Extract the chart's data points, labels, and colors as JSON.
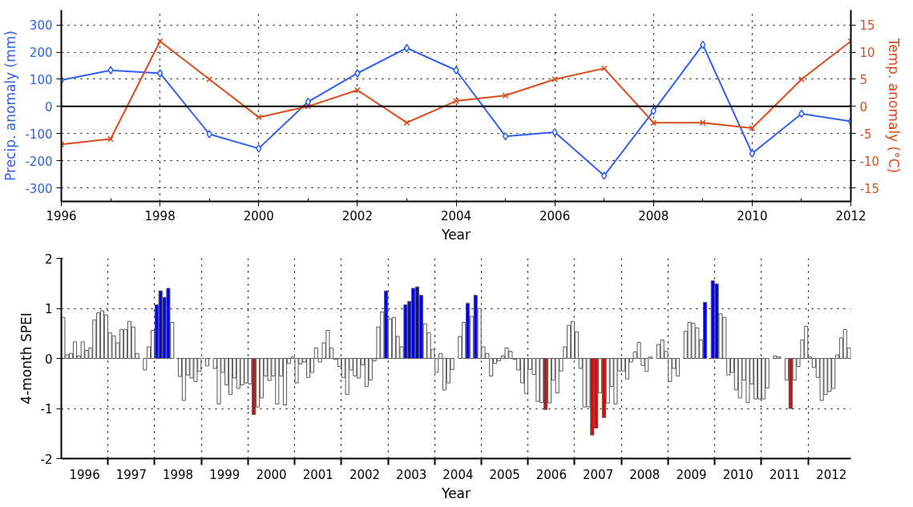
{
  "chart_data": [
    {
      "type": "line",
      "xlabel": "Year",
      "ylabel": "Precip. anomaly (mm)",
      "y2label": "Temp. anomaly (°C)",
      "x": [
        1996,
        1997,
        1998,
        1999,
        2000,
        2001,
        2002,
        2003,
        2004,
        2005,
        2006,
        2007,
        2008,
        2009,
        2010,
        2011,
        2012
      ],
      "series": [
        {
          "color": "#3060f0",
          "marker": "diamond",
          "values": [
            97,
            133,
            122,
            -102,
            -155,
            17,
            122,
            215,
            133,
            -110,
            -95,
            -255,
            -17,
            227,
            -173,
            -27,
            -55
          ]
        },
        {
          "color": "#dd4a1c",
          "marker": "cross",
          "axis": "y2",
          "values": [
            -7,
            -6,
            12,
            5,
            -2,
            0,
            3,
            -3,
            1,
            2,
            5,
            7,
            -3,
            -3,
            -4,
            5,
            12
          ]
        }
      ],
      "xlim": [
        1996,
        2012
      ],
      "ylim": [
        -350,
        355
      ],
      "y2lim": [
        -17.5,
        17.75
      ],
      "xticks": [
        1996,
        {
          "value": 1997,
          "label": null
        },
        1998,
        {
          "value": 1999,
          "label": null
        },
        2000,
        {
          "value": 2001,
          "label": null
        },
        2002,
        {
          "value": 2003,
          "label": null
        },
        2004,
        {
          "value": 2005,
          "label": null
        },
        2006,
        {
          "value": 2007,
          "label": null
        },
        2008,
        {
          "value": 2009,
          "label": null
        },
        2010,
        {
          "value": 2011,
          "label": null
        },
        2012
      ],
      "yticks": [
        -300,
        -200,
        -100,
        0,
        100,
        200,
        300
      ],
      "y2ticks": [
        -15,
        -10,
        -5,
        0,
        5,
        10,
        15
      ],
      "ref_lines": [
        {
          "axis": "y",
          "value": 0,
          "color": "#000000"
        }
      ],
      "grid": true
    },
    {
      "type": "bar",
      "xlabel": "Year",
      "ylabel": "4-month SPEI",
      "x": [
        "1996-01",
        "1996-02",
        "1996-03",
        "1996-04",
        "1996-05",
        "1996-06",
        "1996-07",
        "1996-08",
        "1996-09",
        "1996-10",
        "1996-11",
        "1996-12",
        "1997-01",
        "1997-02",
        "1997-03",
        "1997-04",
        "1997-05",
        "1997-06",
        "1997-07",
        "1997-08",
        "1997-09",
        "1997-10",
        "1997-11",
        "1997-12",
        "1998-01",
        "1998-02",
        "1998-03",
        "1998-04",
        "1998-05",
        "1998-06",
        "1998-07",
        "1998-08",
        "1998-09",
        "1998-10",
        "1998-11",
        "1998-12",
        "1999-01",
        "1999-02",
        "1999-03",
        "1999-04",
        "1999-05",
        "1999-06",
        "1999-07",
        "1999-08",
        "1999-09",
        "1999-10",
        "1999-11",
        "1999-12",
        "2000-01",
        "2000-02",
        "2000-03",
        "2000-04",
        "2000-05",
        "2000-06",
        "2000-07",
        "2000-08",
        "2000-09",
        "2000-10",
        "2000-11",
        "2000-12",
        "2001-01",
        "2001-02",
        "2001-03",
        "2001-04",
        "2001-05",
        "2001-06",
        "2001-07",
        "2001-08",
        "2001-09",
        "2001-10",
        "2001-11",
        "2001-12",
        "2002-01",
        "2002-02",
        "2002-03",
        "2002-04",
        "2002-05",
        "2002-06",
        "2002-07",
        "2002-08",
        "2002-09",
        "2002-10",
        "2002-11",
        "2002-12",
        "2003-01",
        "2003-02",
        "2003-03",
        "2003-04",
        "2003-05",
        "2003-06",
        "2003-07",
        "2003-08",
        "2003-09",
        "2003-10",
        "2003-11",
        "2003-12",
        "2004-01",
        "2004-02",
        "2004-03",
        "2004-04",
        "2004-05",
        "2004-06",
        "2004-07",
        "2004-08",
        "2004-09",
        "2004-10",
        "2004-11",
        "2004-12",
        "2005-01",
        "2005-02",
        "2005-03",
        "2005-04",
        "2005-05",
        "2005-06",
        "2005-07",
        "2005-08",
        "2005-09",
        "2005-10",
        "2005-11",
        "2005-12",
        "2006-01",
        "2006-02",
        "2006-03",
        "2006-04",
        "2006-05",
        "2006-06",
        "2006-07",
        "2006-08",
        "2006-09",
        "2006-10",
        "2006-11",
        "2006-12",
        "2007-01",
        "2007-02",
        "2007-03",
        "2007-04",
        "2007-05",
        "2007-06",
        "2007-07",
        "2007-08",
        "2007-09",
        "2007-10",
        "2007-11",
        "2007-12",
        "2008-01",
        "2008-02",
        "2008-03",
        "2008-04",
        "2008-05",
        "2008-06",
        "2008-07",
        "2008-08",
        "2008-09",
        "2008-10",
        "2008-11",
        "2008-12",
        "2009-01",
        "2009-02",
        "2009-03",
        "2009-04",
        "2009-05",
        "2009-06",
        "2009-07",
        "2009-08",
        "2009-09",
        "2009-10",
        "2009-11",
        "2009-12",
        "2010-01",
        "2010-02",
        "2010-03",
        "2010-04",
        "2010-05",
        "2010-06",
        "2010-07",
        "2010-08",
        "2010-09",
        "2010-10",
        "2010-11",
        "2010-12",
        "2011-01",
        "2011-02",
        "2011-03",
        "2011-04",
        "2011-05",
        "2011-06",
        "2011-07",
        "2011-08",
        "2011-09",
        "2011-10",
        "2011-11",
        "2011-12",
        "2012-01",
        "2012-02",
        "2012-03",
        "2012-04",
        "2012-05",
        "2012-06",
        "2012-07",
        "2012-08",
        "2012-09",
        "2012-10",
        "2012-11"
      ],
      "values": [
        0.82,
        0.07,
        0.1,
        0.33,
        0.05,
        0.33,
        0.16,
        0.21,
        0.77,
        0.91,
        0.95,
        0.87,
        0.51,
        0.45,
        0.31,
        0.58,
        0.58,
        0.74,
        0.63,
        0.1,
        null,
        -0.23,
        0.23,
        0.56,
        1.07,
        1.35,
        1.22,
        1.4,
        0.72,
        null,
        -0.36,
        -0.84,
        -0.33,
        -0.39,
        -0.46,
        -0.26,
        null,
        -0.15,
        null,
        -0.2,
        -0.91,
        -0.28,
        -0.53,
        -0.72,
        -0.39,
        -0.6,
        -0.53,
        -0.49,
        -0.51,
        -1.12,
        -0.97,
        -0.79,
        -0.35,
        -0.44,
        -0.35,
        -0.91,
        -0.35,
        -0.93,
        -0.1,
        0.03,
        -0.49,
        -0.11,
        -0.07,
        -0.38,
        -0.28,
        0.21,
        -0.07,
        0.31,
        0.56,
        0.21,
        -0.02,
        -0.16,
        -0.38,
        -0.72,
        -0.23,
        -0.35,
        -0.39,
        -0.13,
        -0.56,
        -0.43,
        -0.05,
        0.63,
        0.93,
        1.35,
        0.79,
        0.82,
        0.44,
        0.23,
        1.07,
        1.14,
        1.4,
        1.43,
        1.26,
        0.69,
        0.51,
        0.18,
        -0.28,
        0.1,
        -0.63,
        -0.49,
        -0.22,
        null,
        0.44,
        0.72,
        1.1,
        0.84,
        1.26,
        1.0,
        0.23,
        0.1,
        -0.35,
        -0.1,
        -0.05,
        0.05,
        0.21,
        0.14,
        -0.02,
        -0.23,
        -0.49,
        -0.7,
        -0.22,
        -0.32,
        -0.86,
        -0.88,
        -1.02,
        -0.89,
        -0.43,
        -0.69,
        -0.25,
        0.23,
        0.66,
        0.74,
        0.53,
        -0.2,
        -0.97,
        -0.97,
        -1.53,
        -1.39,
        -0.69,
        -1.18,
        -0.89,
        -0.56,
        -0.91,
        -0.25,
        -0.25,
        -0.41,
        -0.07,
        0.13,
        0.32,
        -0.14,
        -0.26,
        0.03,
        null,
        0.28,
        0.37,
        0.14,
        -0.46,
        -0.2,
        -0.35,
        null,
        0.54,
        0.72,
        0.7,
        0.61,
        0.37,
        1.12,
        null,
        1.55,
        1.49,
        0.89,
        0.82,
        -0.33,
        -0.28,
        -0.63,
        -0.79,
        -0.43,
        -0.88,
        -0.51,
        -0.81,
        -0.81,
        -0.81,
        -0.59,
        null,
        0.05,
        0.03,
        null,
        -0.43,
        -1.0,
        -0.43,
        -0.16,
        0.37,
        0.64,
        0.03,
        -0.18,
        -0.38,
        -0.84,
        -0.72,
        -0.66,
        -0.6,
        0.07,
        0.41,
        0.58,
        0.21
      ],
      "colors": [
        "#ffffff",
        "#ffffff",
        "#ffffff",
        "#ffffff",
        "#ffffff",
        "#ffffff",
        "#ffffff",
        "#ffffff",
        "#ffffff",
        "#ffffff",
        "#ffffff",
        "#ffffff",
        "#ffffff",
        "#ffffff",
        "#ffffff",
        "#ffffff",
        "#ffffff",
        "#ffffff",
        "#ffffff",
        "#ffffff",
        "#ffffff",
        "#ffffff",
        "#ffffff",
        "#ffffff",
        "#0000ee",
        "#0000ee",
        "#0000ee",
        "#0000ee",
        "#ffffff",
        "#ffffff",
        "#ffffff",
        "#ffffff",
        "#ffffff",
        "#ffffff",
        "#ffffff",
        "#ffffff",
        "#ffffff",
        "#ffffff",
        "#ffffff",
        "#ffffff",
        "#ffffff",
        "#ffffff",
        "#ffffff",
        "#ffffff",
        "#ffffff",
        "#ffffff",
        "#ffffff",
        "#ffffff",
        "#ffffff",
        "#ee0000",
        "#ffffff",
        "#ffffff",
        "#ffffff",
        "#ffffff",
        "#ffffff",
        "#ffffff",
        "#ffffff",
        "#ffffff",
        "#ffffff",
        "#ffffff",
        "#ffffff",
        "#ffffff",
        "#ffffff",
        "#ffffff",
        "#ffffff",
        "#ffffff",
        "#ffffff",
        "#ffffff",
        "#ffffff",
        "#ffffff",
        "#ffffff",
        "#ffffff",
        "#ffffff",
        "#ffffff",
        "#ffffff",
        "#ffffff",
        "#ffffff",
        "#ffffff",
        "#ffffff",
        "#ffffff",
        "#ffffff",
        "#ffffff",
        "#ffffff",
        "#0000ee",
        "#ffffff",
        "#ffffff",
        "#ffffff",
        "#ffffff",
        "#0000ee",
        "#0000ee",
        "#0000ee",
        "#0000ee",
        "#0000ee",
        "#ffffff",
        "#ffffff",
        "#ffffff",
        "#ffffff",
        "#ffffff",
        "#ffffff",
        "#ffffff",
        "#ffffff",
        "#ffffff",
        "#ffffff",
        "#ffffff",
        "#0000ee",
        "#ffffff",
        "#0000ee",
        "#ffffff",
        "#ffffff",
        "#ffffff",
        "#ffffff",
        "#ffffff",
        "#ffffff",
        "#ffffff",
        "#ffffff",
        "#ffffff",
        "#ffffff",
        "#ffffff",
        "#ffffff",
        "#ffffff",
        "#ffffff",
        "#ffffff",
        "#ffffff",
        "#ffffff",
        "#ee0000",
        "#ffffff",
        "#ffffff",
        "#ffffff",
        "#ffffff",
        "#ffffff",
        "#ffffff",
        "#ffffff",
        "#ffffff",
        "#ffffff",
        "#ffffff",
        "#ffffff",
        "#ee0000",
        "#ee0000",
        "#ffffff",
        "#ee0000",
        "#ffffff",
        "#ffffff",
        "#ffffff",
        "#ffffff",
        "#ffffff",
        "#ffffff",
        "#ffffff",
        "#ffffff",
        "#ffffff",
        "#ffffff",
        "#ffffff",
        "#ffffff",
        "#ffffff",
        "#ffffff",
        "#ffffff",
        "#ffffff",
        "#ffffff",
        "#ffffff",
        "#ffffff",
        "#ffffff",
        "#ffffff",
        "#ffffff",
        "#ffffff",
        "#ffffff",
        "#ffffff",
        "#0000ee",
        "#ffffff",
        "#0000ee",
        "#0000ee",
        "#ffffff",
        "#ffffff",
        "#ffffff",
        "#ffffff",
        "#ffffff",
        "#ffffff",
        "#ffffff",
        "#ffffff",
        "#ffffff",
        "#ffffff",
        "#ffffff",
        "#ffffff",
        "#ffffff",
        "#ffffff",
        "#ffffff",
        "#ffffff",
        "#ffffff",
        "#ffffff",
        "#ee0000",
        "#ffffff",
        "#ffffff",
        "#ffffff",
        "#ffffff",
        "#ffffff",
        "#ffffff",
        "#ffffff",
        "#ffffff",
        "#ffffff",
        "#ffffff",
        "#ffffff",
        "#ffffff",
        "#ffffff",
        "#ffffff",
        "#ffffff"
      ],
      "xlim": [
        "1996-01",
        "2012-12"
      ],
      "ylim": [
        -2,
        2
      ],
      "yticks": [
        -2,
        -1,
        0,
        1,
        2
      ],
      "xticks": [
        {
          "value": "1996-07",
          "label": "1996"
        },
        {
          "value": "1997-01",
          "label": null
        },
        {
          "value": "1997-07",
          "label": "1997"
        },
        {
          "value": "1998-01",
          "label": null
        },
        {
          "value": "1998-07",
          "label": "1998"
        },
        {
          "value": "1999-01",
          "label": null
        },
        {
          "value": "1999-07",
          "label": "1999"
        },
        {
          "value": "2000-01",
          "label": null
        },
        {
          "value": "2000-07",
          "label": "2000"
        },
        {
          "value": "2001-01",
          "label": null
        },
        {
          "value": "2001-07",
          "label": "2001"
        },
        {
          "value": "2002-01",
          "label": null
        },
        {
          "value": "2002-07",
          "label": "2002"
        },
        {
          "value": "2003-01",
          "label": null
        },
        {
          "value": "2003-07",
          "label": "2003"
        },
        {
          "value": "2004-01",
          "label": null
        },
        {
          "value": "2004-07",
          "label": "2004"
        },
        {
          "value": "2005-01",
          "label": null
        },
        {
          "value": "2005-07",
          "label": "2005"
        },
        {
          "value": "2006-01",
          "label": null
        },
        {
          "value": "2006-07",
          "label": "2006"
        },
        {
          "value": "2007-01",
          "label": null
        },
        {
          "value": "2007-07",
          "label": "2007"
        },
        {
          "value": "2008-01",
          "label": null
        },
        {
          "value": "2008-07",
          "label": "2008"
        },
        {
          "value": "2009-01",
          "label": null
        },
        {
          "value": "2009-07",
          "label": "2009"
        },
        {
          "value": "2010-01",
          "label": null
        },
        {
          "value": "2010-07",
          "label": "2010"
        },
        {
          "value": "2011-01",
          "label": null
        },
        {
          "value": "2011-07",
          "label": "2011"
        },
        {
          "value": "2012-01",
          "label": null
        },
        {
          "value": "2012-07",
          "label": "2012"
        }
      ],
      "grid": true
    }
  ]
}
